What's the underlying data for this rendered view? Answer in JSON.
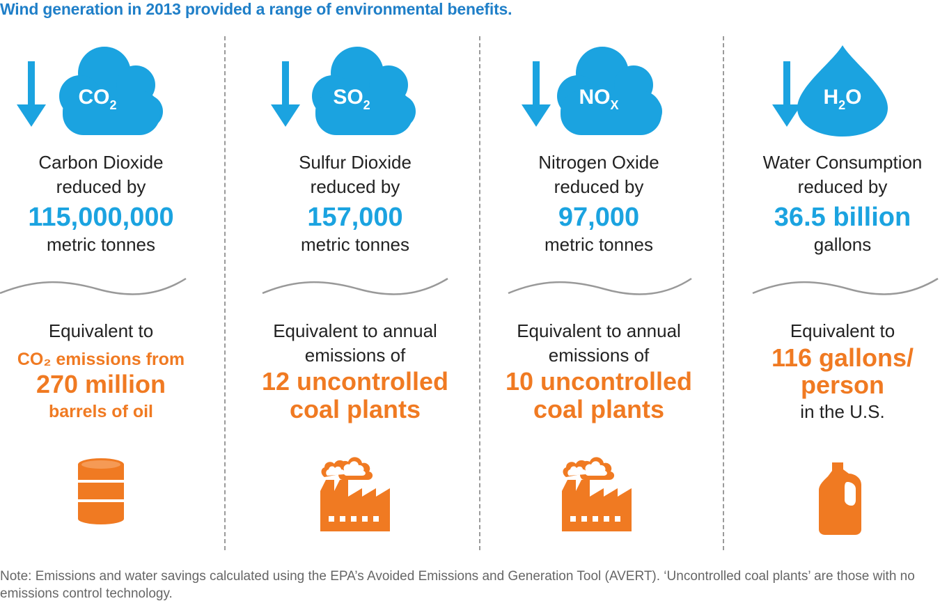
{
  "title": "Wind generation in 2013 provided a range of environmental benefits.",
  "colors": {
    "blue_title": "#1f7fc8",
    "blue_value": "#1ba3e0",
    "icon_blue": "#1ba3e0",
    "orange": "#f07a22"
  },
  "columns": [
    {
      "icon": "co2-cloud-icon",
      "chem_main": "CO",
      "chem_sub": "2",
      "label1": "Carbon Dioxide",
      "label2": "reduced by",
      "value": "115,000,000",
      "unit": "metric tonnes",
      "equiv1": "Equivalent to",
      "equiv_orange_sm1": "CO₂ emissions from",
      "equiv_orange_lg1": "270 million",
      "equiv_orange_sm2": "barrels of oil",
      "bottom_icon": "oil-barrel-icon"
    },
    {
      "icon": "so2-cloud-icon",
      "chem_main": "SO",
      "chem_sub": "2",
      "label1": "Sulfur Dioxide",
      "label2": "reduced by",
      "value": "157,000",
      "unit": "metric tonnes",
      "equiv1": "Equivalent to annual",
      "equiv2": "emissions of",
      "equiv_orange_lg1": "12 uncontrolled",
      "equiv_orange_lg2": "coal plants",
      "bottom_icon": "coal-plant-icon"
    },
    {
      "icon": "nox-cloud-icon",
      "chem_main": "NO",
      "chem_sub": "X",
      "label1": "Nitrogen Oxide",
      "label2": "reduced by",
      "value": "97,000",
      "unit": "metric tonnes",
      "equiv1": "Equivalent to annual",
      "equiv2": "emissions of",
      "equiv_orange_lg1": "10 uncontrolled",
      "equiv_orange_lg2": "coal plants",
      "bottom_icon": "coal-plant-icon"
    },
    {
      "icon": "h2o-drop-icon",
      "chem_main": "H",
      "chem_sub": "2",
      "chem_tail": "O",
      "label1": "Water Consumption",
      "label2": "reduced by",
      "value": "36.5 billion",
      "unit": "gallons",
      "equiv1": "Equivalent to",
      "equiv_orange_lg1": "116 gallons/",
      "equiv_orange_lg2": "person",
      "equiv3": "in the U.S.",
      "bottom_icon": "water-jug-icon"
    }
  ],
  "note": "Note: Emissions and water savings calculated using the EPA’s Avoided Emissions and Generation Tool (AVERT).  ‘Uncontrolled coal plants’ are those with no emissions control technology."
}
